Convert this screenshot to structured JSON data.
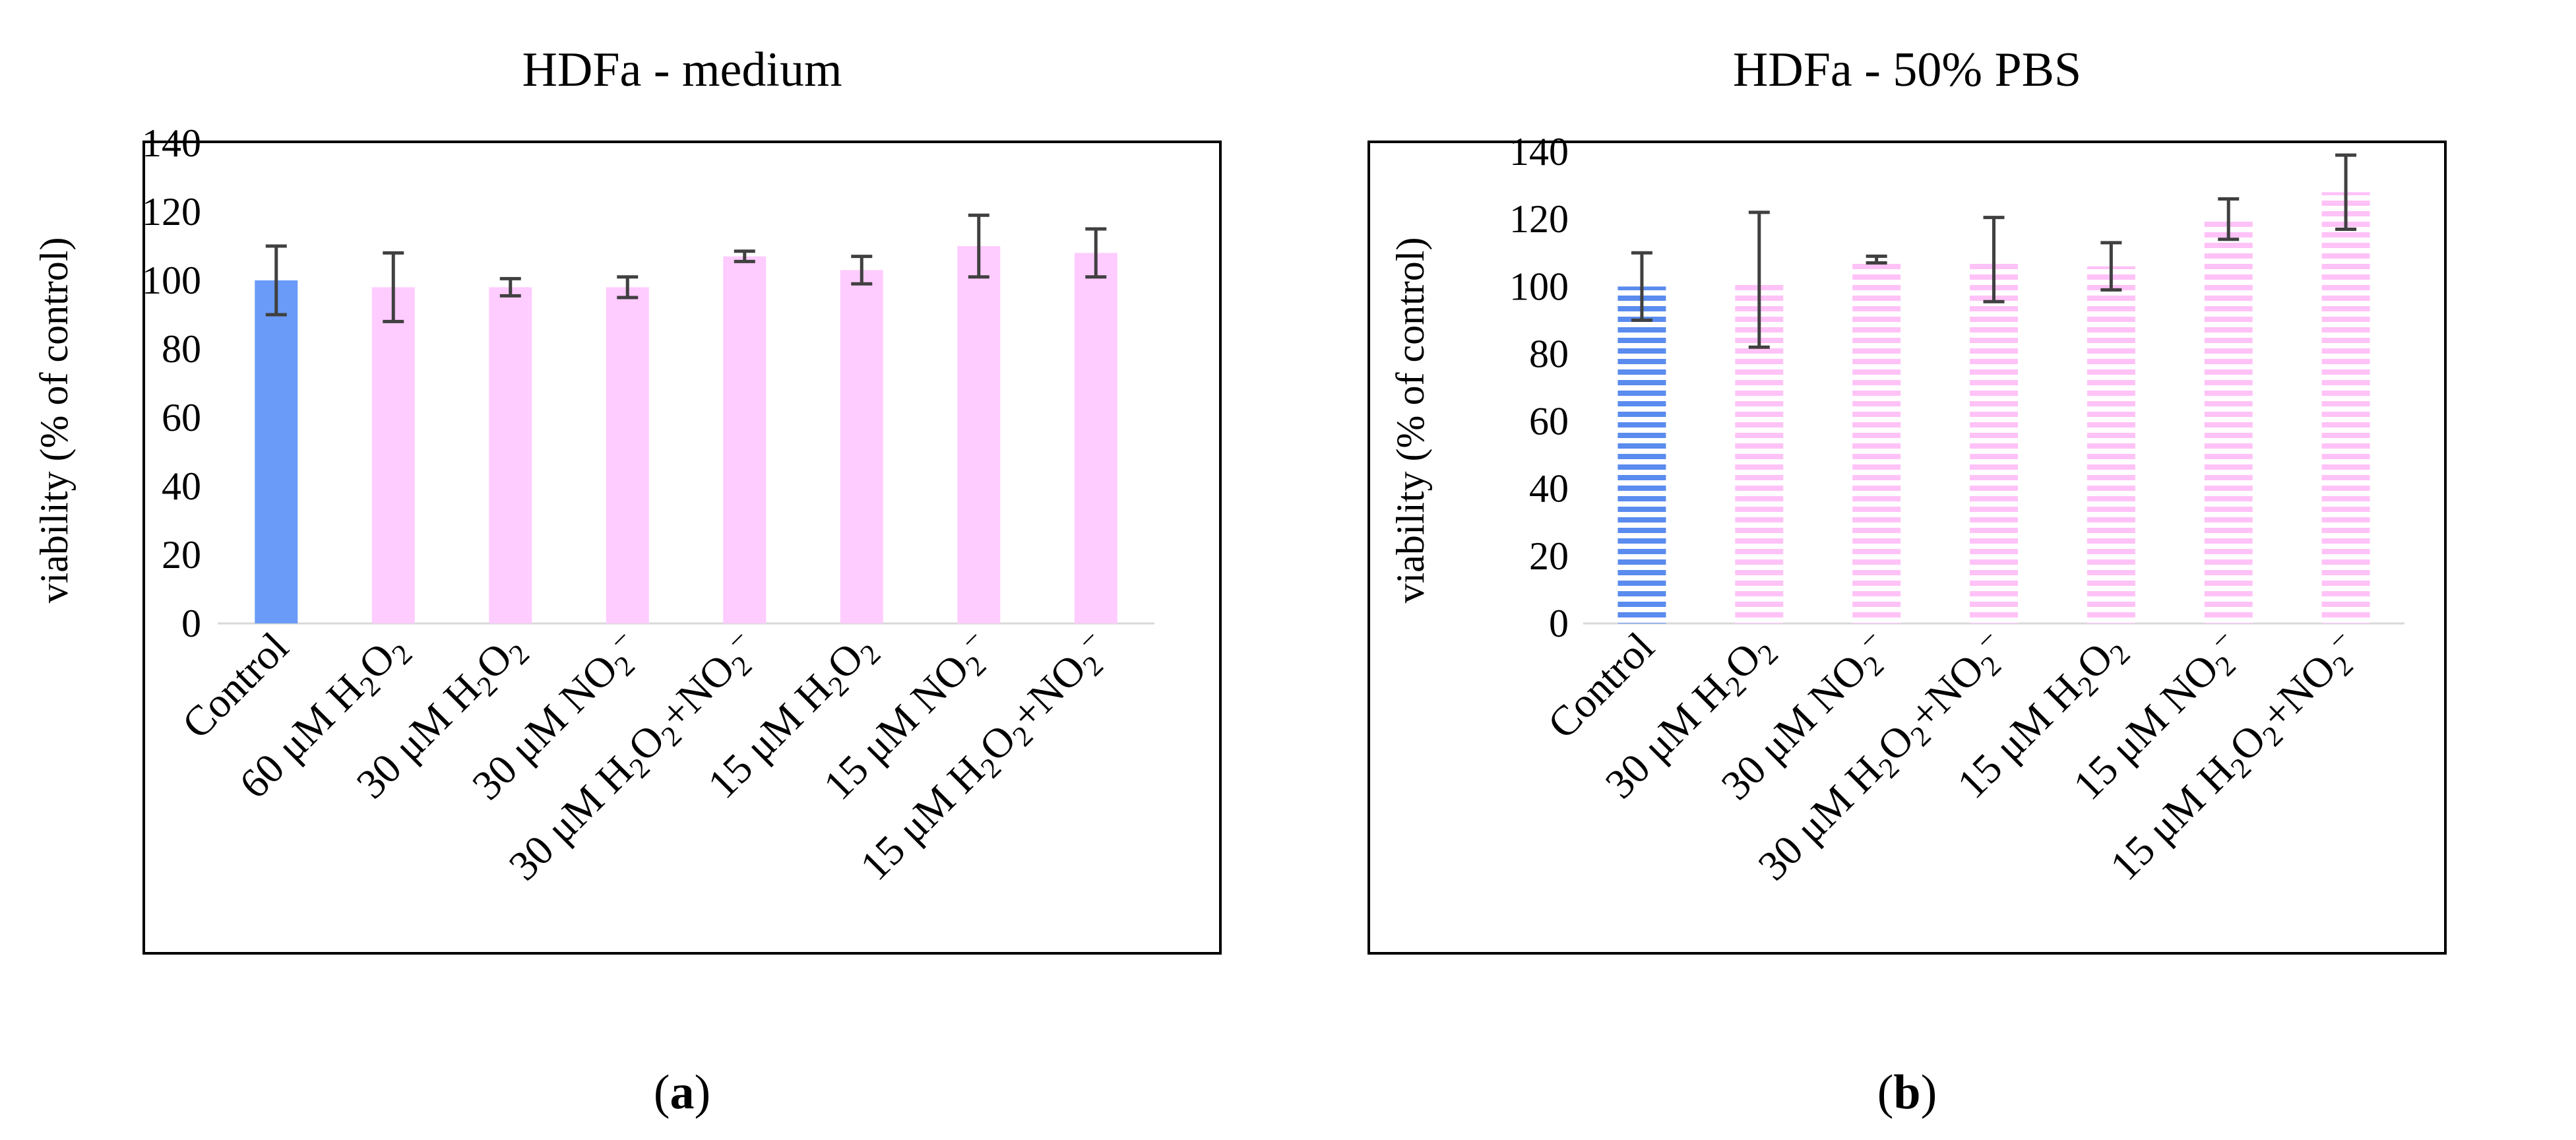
{
  "colors": {
    "control_solid": "#6B9BF8",
    "control_stripe": "#5A8BEE",
    "treatment_fill": "#FFCCFF",
    "treatment_stripe": "#FFC2F7",
    "error_bar": "#404040",
    "axis": "#000000",
    "frame": "#000000"
  },
  "chart_data": [
    {
      "type": "bar",
      "id": "a",
      "panel_label": "a",
      "title": "HDFa - medium",
      "xlabel": "",
      "ylabel": "viability (% of control)",
      "ylim": [
        0,
        140
      ],
      "yticks": [
        0,
        20,
        40,
        60,
        80,
        100,
        120,
        140
      ],
      "fill_style": "solid",
      "categories": [
        [
          "Control"
        ],
        [
          "60 μM H",
          {
            "sub": "2"
          },
          "O",
          {
            "sub": "2"
          }
        ],
        [
          "30 μM H",
          {
            "sub": "2"
          },
          "O",
          {
            "sub": "2"
          }
        ],
        [
          "30 μM NO",
          {
            "sub": "2"
          },
          {
            "sup": "−"
          }
        ],
        [
          "30 μM H",
          {
            "sub": "2"
          },
          "O",
          {
            "sub": "2"
          },
          "+NO",
          {
            "sub": "2"
          },
          {
            "sup": "−"
          }
        ],
        [
          "15 μM H",
          {
            "sub": "2"
          },
          "O",
          {
            "sub": "2"
          }
        ],
        [
          "15 μM NO",
          {
            "sub": "2"
          },
          {
            "sup": "−"
          }
        ],
        [
          "15 μM H",
          {
            "sub": "2"
          },
          "O",
          {
            "sub": "2"
          },
          "+NO",
          {
            "sub": "2"
          },
          {
            "sup": "−"
          }
        ]
      ],
      "values": [
        100,
        98,
        98,
        98,
        107,
        103,
        110,
        108
      ],
      "errors": [
        10,
        10,
        2.5,
        3,
        1.5,
        4,
        9,
        7
      ]
    },
    {
      "type": "bar",
      "id": "b",
      "panel_label": "b",
      "title": "HDFa - 50% PBS",
      "xlabel": "",
      "ylabel": "viability (% of control)",
      "ylim": [
        0,
        140
      ],
      "yticks": [
        0,
        20,
        40,
        60,
        80,
        100,
        120,
        140
      ],
      "fill_style": "striped",
      "categories": [
        [
          "Control"
        ],
        [
          "30 μM H",
          {
            "sub": "2"
          },
          "O",
          {
            "sub": "2"
          }
        ],
        [
          "30 μM NO",
          {
            "sub": "2"
          },
          {
            "sup": "−"
          }
        ],
        [
          "30 μM H",
          {
            "sub": "2"
          },
          "O",
          {
            "sub": "2"
          },
          "+NO",
          {
            "sub": "2"
          },
          {
            "sup": "−"
          }
        ],
        [
          "15 μM H",
          {
            "sub": "2"
          },
          "O",
          {
            "sub": "2"
          }
        ],
        [
          "15 μM NO",
          {
            "sub": "2"
          },
          {
            "sup": "−"
          }
        ],
        [
          "15 μM H",
          {
            "sub": "2"
          },
          "O",
          {
            "sub": "2"
          },
          "+NO",
          {
            "sub": "2"
          },
          {
            "sup": "−"
          }
        ]
      ],
      "values": [
        100,
        102,
        108,
        108,
        106,
        120,
        128
      ],
      "errors": [
        10,
        20,
        1,
        12.5,
        7,
        6,
        11
      ]
    }
  ]
}
